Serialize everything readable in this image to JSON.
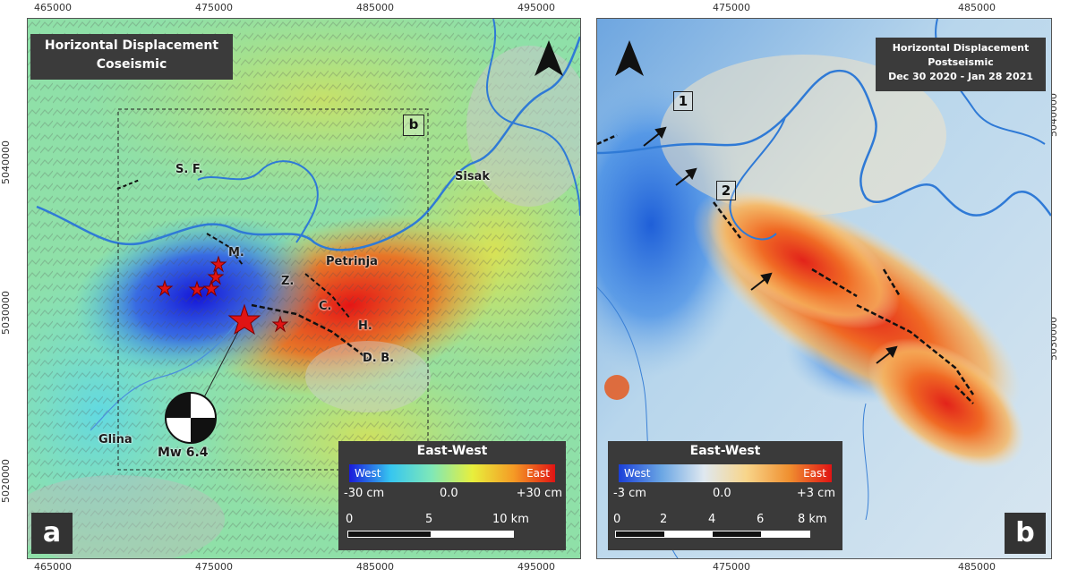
{
  "panel_a": {
    "title_line1": "Horizontal Displacement",
    "title_line2": "Coseismic",
    "x_ticks_top": [
      "465000",
      "475000",
      "485000",
      "495000"
    ],
    "x_ticks_bottom": [
      "465000",
      "475000",
      "485000",
      "495000"
    ],
    "y_ticks": [
      "5040000",
      "5030000",
      "5020000"
    ],
    "places": {
      "sf": "S. F.",
      "sisak": "Sisak",
      "m": "M.",
      "petrinja": "Petrinja",
      "z": "Z.",
      "c": "C.",
      "h": "H.",
      "db": "D. B.",
      "glina": "Glina"
    },
    "magnitude": "Mw 6.4",
    "inset_label": "b",
    "legend": {
      "title": "East-West",
      "west": "West",
      "east": "East",
      "min": "-30 cm",
      "mid": "0.0",
      "max": "+30 cm",
      "scale_labels": [
        "0",
        "5",
        "10 km"
      ]
    },
    "letter": "a"
  },
  "panel_b": {
    "title_line1": "Horizontal Displacement",
    "title_line2": "Postseismic",
    "title_line3": "Dec 30 2020 - Jan 28 2021",
    "x_ticks_top": [
      "475000",
      "485000"
    ],
    "x_ticks_bottom": [
      "475000",
      "485000"
    ],
    "y_ticks": [
      "5040000",
      "5030000"
    ],
    "box_labels": [
      "1",
      "2"
    ],
    "legend": {
      "title": "East-West",
      "west": "West",
      "east": "East",
      "min": "-3 cm",
      "mid": "0.0",
      "max": "+3 cm",
      "scale_labels": [
        "0",
        "2",
        "4",
        "6",
        "8 km"
      ]
    },
    "letter": "b"
  },
  "colors": {
    "west": "#1a1adb",
    "east": "#e01414",
    "river": "#2f7ad6",
    "legend_bg": "#3a3a3a"
  }
}
